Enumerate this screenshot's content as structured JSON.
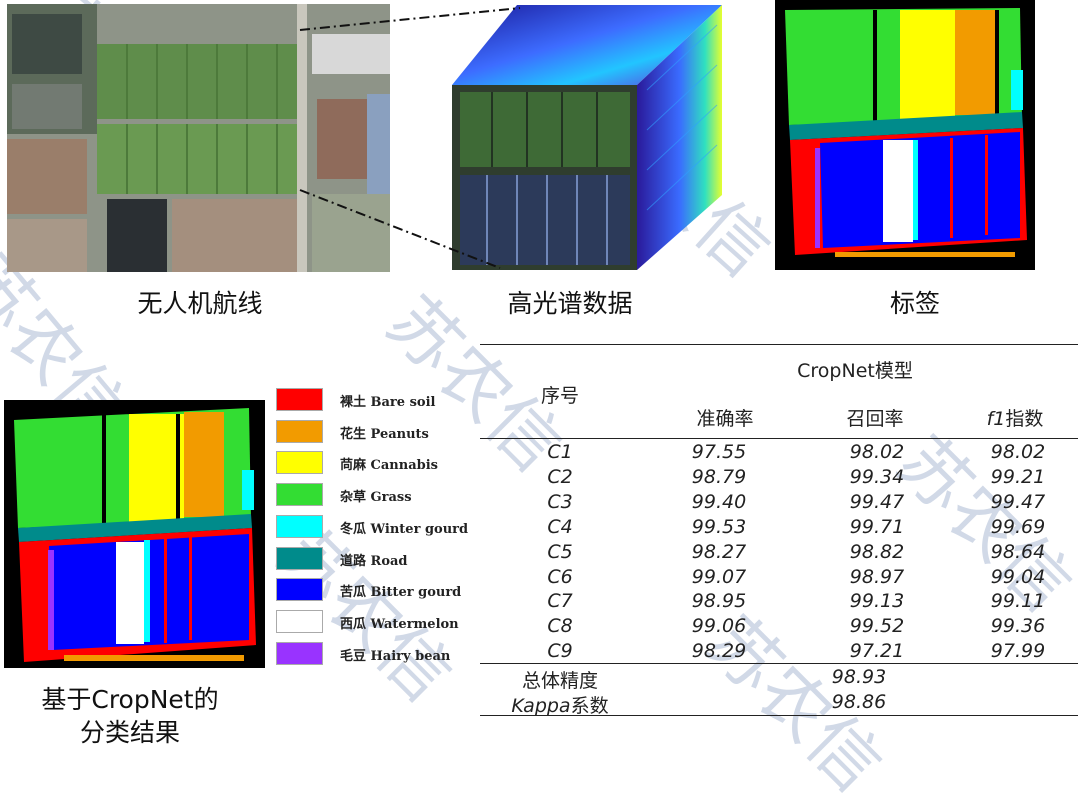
{
  "captions": {
    "uav_route": "无人机航线",
    "hyperspectral": "高光谱数据",
    "label": "标签",
    "result_line1": "基于CropNet的",
    "result_line2": "分类结果"
  },
  "legend": [
    {
      "name": "裸土 Bare soil",
      "color": "#ff0000"
    },
    {
      "name": "花生 Peanuts",
      "color": "#f29b00"
    },
    {
      "name": "苘麻 Cannabis",
      "color": "#ffff00"
    },
    {
      "name": "杂草 Grass",
      "color": "#33dd33"
    },
    {
      "name": "冬瓜 Winter gourd",
      "color": "#00ffff"
    },
    {
      "name": "道路 Road",
      "color": "#008b8b"
    },
    {
      "name": "苦瓜 Bitter gourd",
      "color": "#0000ff"
    },
    {
      "name": "西瓜 Watermelon",
      "color": "#ffffff"
    },
    {
      "name": "毛豆 Hairy bean",
      "color": "#9933ff"
    }
  ],
  "table": {
    "model_header": "CropNet模型",
    "index_header": "序号",
    "col_accuracy": "准确率",
    "col_recall": "召回率",
    "col_f1_italic": "f1",
    "col_f1_rest": "指数",
    "rows": [
      {
        "id": "C1",
        "acc": "97.55",
        "rec": "98.02",
        "f1": "98.02"
      },
      {
        "id": "C2",
        "acc": "98.79",
        "rec": "99.34",
        "f1": "99.21"
      },
      {
        "id": "C3",
        "acc": "99.40",
        "rec": "99.47",
        "f1": "99.47"
      },
      {
        "id": "C4",
        "acc": "99.53",
        "rec": "99.71",
        "f1": "99.69"
      },
      {
        "id": "C5",
        "acc": "98.27",
        "rec": "98.82",
        "f1": "98.64"
      },
      {
        "id": "C6",
        "acc": "99.07",
        "rec": "98.97",
        "f1": "99.04"
      },
      {
        "id": "C7",
        "acc": "98.95",
        "rec": "99.13",
        "f1": "99.11"
      },
      {
        "id": "C8",
        "acc": "99.06",
        "rec": "99.52",
        "f1": "99.36"
      },
      {
        "id": "C9",
        "acc": "98.29",
        "rec": "97.21",
        "f1": "97.99"
      }
    ],
    "overall_label": "总体精度",
    "overall_value": "98.93",
    "kappa_label_italic": "Kappa",
    "kappa_label_rest": "系数",
    "kappa_value": "98.86"
  },
  "watermark": "苏农信"
}
